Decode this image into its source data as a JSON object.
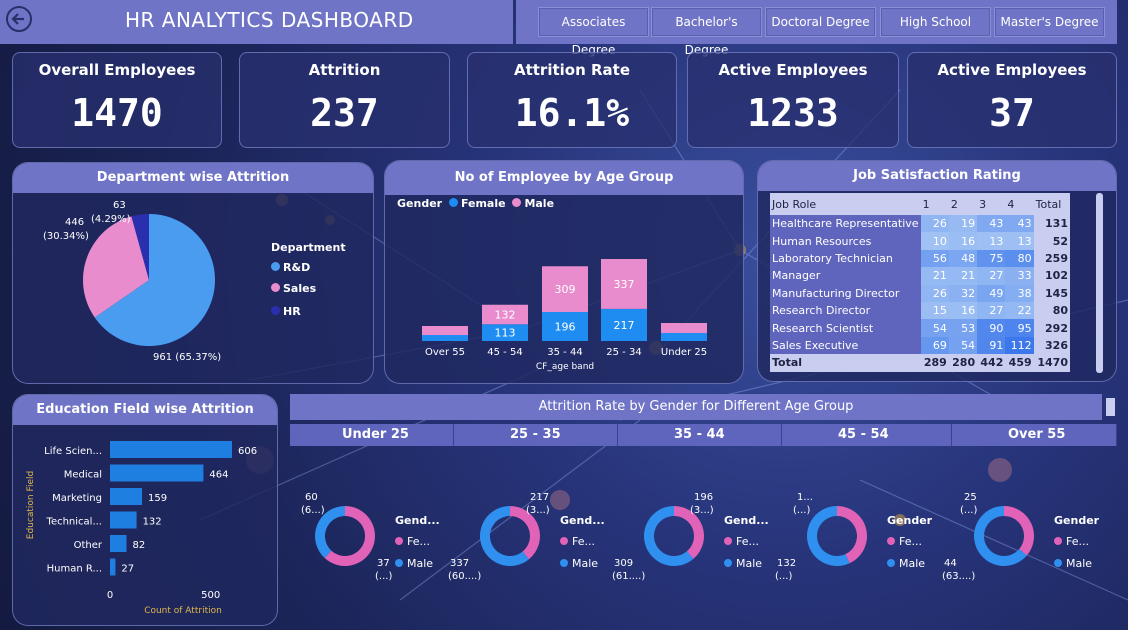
{
  "header": {
    "title": "HR ANALYTICS DASHBOARD"
  },
  "slicer": [
    "Associates Degree",
    "Bachelor's Degree",
    "Doctoral Degree",
    "High School",
    "Master's Degree"
  ],
  "kpis": [
    {
      "label": "Overall Employees",
      "value": "1470"
    },
    {
      "label": "Attrition",
      "value": "237"
    },
    {
      "label": "Attrition Rate",
      "value": "16.1%"
    },
    {
      "label": "Active Employees",
      "value": "1233"
    },
    {
      "label": "Active Employees",
      "value": "37"
    }
  ],
  "dept": {
    "title": "Department wise Attrition",
    "legend_title": "Department",
    "labels": {
      "rd": "961 (65.37%)",
      "sales": "446\n(30.34%)",
      "hr": "63\n(4.29%)"
    },
    "legend": [
      "R&D",
      "Sales",
      "HR"
    ],
    "colors": {
      "rd": "#4a9cf0",
      "sales": "#e98ccd",
      "hr": "#2a2fae"
    }
  },
  "age": {
    "title": "No of Employee by Age Group",
    "legend_title": "Gender",
    "legend": [
      "Female",
      "Male"
    ],
    "xlabel": "CF_age band"
  },
  "job": {
    "title": "Job Satisfaction Rating",
    "headers": [
      "Job Role",
      "1",
      "2",
      "3",
      "4",
      "Total"
    ],
    "rows": [
      [
        "Healthcare Representative",
        "26",
        "19",
        "43",
        "43",
        "131"
      ],
      [
        "Human Resources",
        "10",
        "16",
        "13",
        "13",
        "52"
      ],
      [
        "Laboratory Technician",
        "56",
        "48",
        "75",
        "80",
        "259"
      ],
      [
        "Manager",
        "21",
        "21",
        "27",
        "33",
        "102"
      ],
      [
        "Manufacturing Director",
        "26",
        "32",
        "49",
        "38",
        "145"
      ],
      [
        "Research Director",
        "15",
        "16",
        "27",
        "22",
        "80"
      ],
      [
        "Research Scientist",
        "54",
        "53",
        "90",
        "95",
        "292"
      ],
      [
        "Sales Executive",
        "69",
        "54",
        "91",
        "112",
        "326"
      ]
    ],
    "total": [
      "Total",
      "289",
      "280",
      "442",
      "459",
      "1470"
    ]
  },
  "edu": {
    "title": "Education Field wise Attrition",
    "ylabel": "Education Field",
    "xlabel": "Count of Attrition",
    "ticks": [
      "0",
      "500"
    ]
  },
  "gender_age": {
    "title": "Attrition Rate by Gender for Different  Age Group",
    "groups": [
      {
        "label": "Under 25",
        "female_label": "60\n(6...)",
        "male_label": "37\n(...)",
        "legend_title": "Gend...",
        "fe": "Fe...",
        "ma": "Male"
      },
      {
        "label": "25 - 35",
        "female_label": "217\n(3...)",
        "male_label": "337\n(60....)",
        "legend_title": "Gend...",
        "fe": "Fe...",
        "ma": "Male"
      },
      {
        "label": "35 - 44",
        "female_label": "196\n(3...)",
        "male_label": "309\n(61....)",
        "legend_title": "Gend...",
        "fe": "Fe...",
        "ma": "Male"
      },
      {
        "label": "45 - 54",
        "female_label": "1...\n(...)",
        "male_label": "132\n(...)",
        "legend_title": "Gender",
        "fe": "Fe...",
        "ma": "Male"
      },
      {
        "label": "Over 55",
        "female_label": "25\n(...)",
        "male_label": "44\n(63....)",
        "legend_title": "Gender",
        "fe": "Fe...",
        "ma": "Male"
      }
    ]
  },
  "chart_data": [
    {
      "type": "pie",
      "title": "Department wise Attrition",
      "categories": [
        "R&D",
        "Sales",
        "HR"
      ],
      "values": [
        961,
        446,
        63
      ]
    },
    {
      "type": "bar",
      "title": "No of Employee by Age Group",
      "categories": [
        "Over 55",
        "45 - 54",
        "35 - 44",
        "25 - 34",
        "Under 25"
      ],
      "series": [
        {
          "name": "Female",
          "values": [
            null,
            113,
            196,
            217,
            null
          ]
        },
        {
          "name": "Male",
          "values": [
            null,
            132,
            309,
            337,
            null
          ]
        }
      ],
      "xlabel": "CF_age band"
    },
    {
      "type": "bar",
      "title": "Education Field wise Attrition",
      "categories": [
        "Life Scien...",
        "Medical",
        "Marketing",
        "Technical...",
        "Other",
        "Human R..."
      ],
      "values": [
        606,
        464,
        159,
        132,
        82,
        27
      ],
      "xlim": [
        0,
        650
      ],
      "xlabel": "Count of Attrition",
      "ylabel": "Education Field"
    },
    {
      "type": "pie",
      "title": "Attrition Rate by Gender for Different  Age Group",
      "series": [
        {
          "name": "Under 25",
          "values": [
            60,
            37
          ]
        },
        {
          "name": "25 - 35",
          "values": [
            217,
            337
          ]
        },
        {
          "name": "35 - 44",
          "values": [
            196,
            309
          ]
        },
        {
          "name": "45 - 54",
          "values": [
            100,
            132
          ]
        },
        {
          "name": "Over 55",
          "values": [
            25,
            44
          ]
        }
      ],
      "categories": [
        "Female",
        "Male"
      ]
    }
  ]
}
